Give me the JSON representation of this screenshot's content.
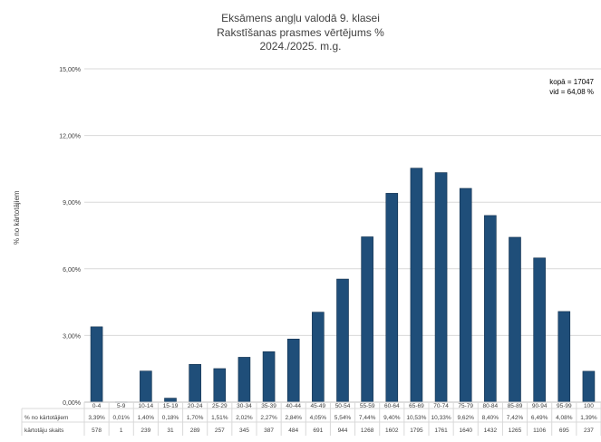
{
  "title_lines": [
    "Eksāmens angļu valodā 9. klasei",
    "Rakstīšanas prasmes vērtējums %",
    "2024./2025. m.g."
  ],
  "stats": {
    "total": "kopā = 17047",
    "mean": "vid = 64,08 %"
  },
  "chart_data": {
    "type": "bar",
    "title": "Eksāmens angļu valodā 9. klasei Rakstīšanas prasmes vērtējums % 2024./2025. m.g.",
    "xlabel": "",
    "ylabel": "% no kārtotājiem",
    "ylim": [
      0,
      15
    ],
    "y_ticks": [
      "0,00%",
      "3,00%",
      "6,00%",
      "9,00%",
      "12,00%",
      "15,00%"
    ],
    "grid": true,
    "categories": [
      "0-4",
      "5-9",
      "10-14",
      "15-19",
      "20-24",
      "25-29",
      "30-34",
      "35-39",
      "40-44",
      "45-49",
      "50-54",
      "55-59",
      "60-64",
      "65-69",
      "70-74",
      "75-79",
      "80-84",
      "85-89",
      "90-94",
      "95-99",
      "100"
    ],
    "values": [
      3.39,
      0.01,
      1.4,
      0.18,
      1.7,
      1.51,
      2.02,
      2.27,
      2.84,
      4.05,
      5.54,
      7.44,
      9.4,
      10.53,
      10.33,
      9.62,
      8.4,
      7.42,
      6.49,
      4.08,
      1.39
    ],
    "bar_color": "#1F4E79",
    "table": {
      "row_labels": [
        "% no kārtotājiem",
        "kārtotāju skaits"
      ],
      "percent_labels": [
        "3,39%",
        "0,01%",
        "1,40%",
        "0,18%",
        "1,70%",
        "1,51%",
        "2,02%",
        "2,27%",
        "2,84%",
        "4,05%",
        "5,54%",
        "7,44%",
        "9,40%",
        "10,53%",
        "10,33%",
        "9,62%",
        "8,40%",
        "7,42%",
        "6,49%",
        "4,08%",
        "1,39%"
      ],
      "counts": [
        "578",
        "1",
        "239",
        "31",
        "289",
        "257",
        "345",
        "387",
        "484",
        "691",
        "944",
        "1268",
        "1602",
        "1795",
        "1761",
        "1640",
        "1432",
        "1265",
        "1106",
        "695",
        "237"
      ]
    }
  }
}
